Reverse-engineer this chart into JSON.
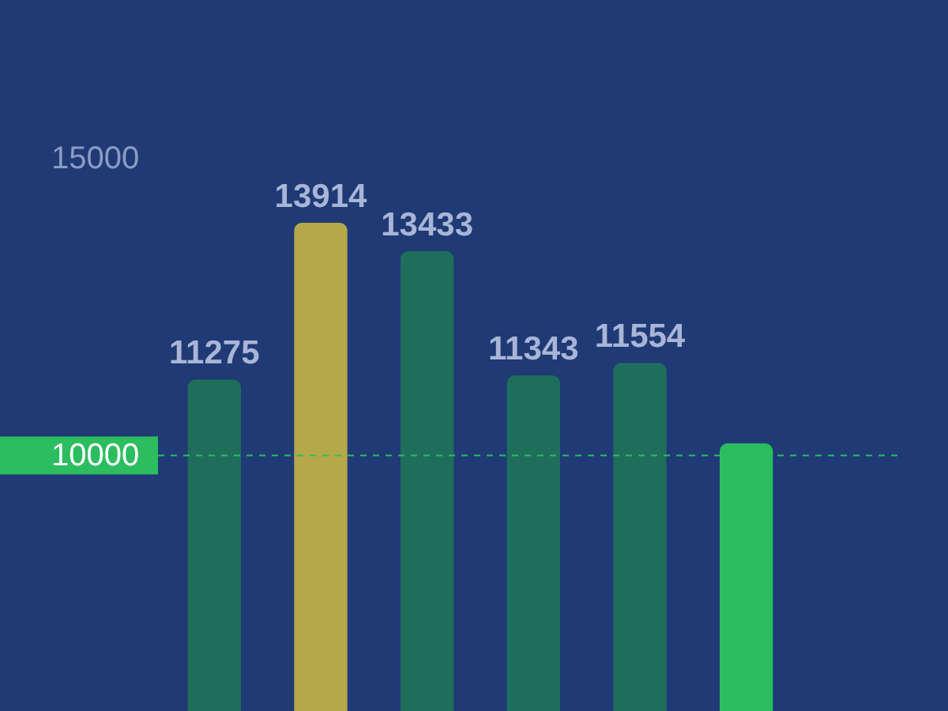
{
  "chart_data": {
    "type": "bar",
    "categories": [
      null,
      null,
      null,
      null,
      null,
      null
    ],
    "values": [
      11275,
      13914,
      13433,
      11343,
      11554,
      10200
    ],
    "colors": [
      "#1f6e5c",
      "#b5a84a",
      "#1f6e5c",
      "#1f6e5c",
      "#1f6e5c",
      "#2bbd5f"
    ],
    "value_labels": [
      "11275",
      "13914",
      "13433",
      "11343",
      "11554",
      null
    ],
    "ylim": [
      5700,
      17660
    ],
    "yticks": [
      10000,
      15000
    ],
    "ref_lines": [
      {
        "axis": "y",
        "value": 10000,
        "color": "#2bbd5f",
        "line_style": "dashed"
      }
    ],
    "grid": false
  }
}
